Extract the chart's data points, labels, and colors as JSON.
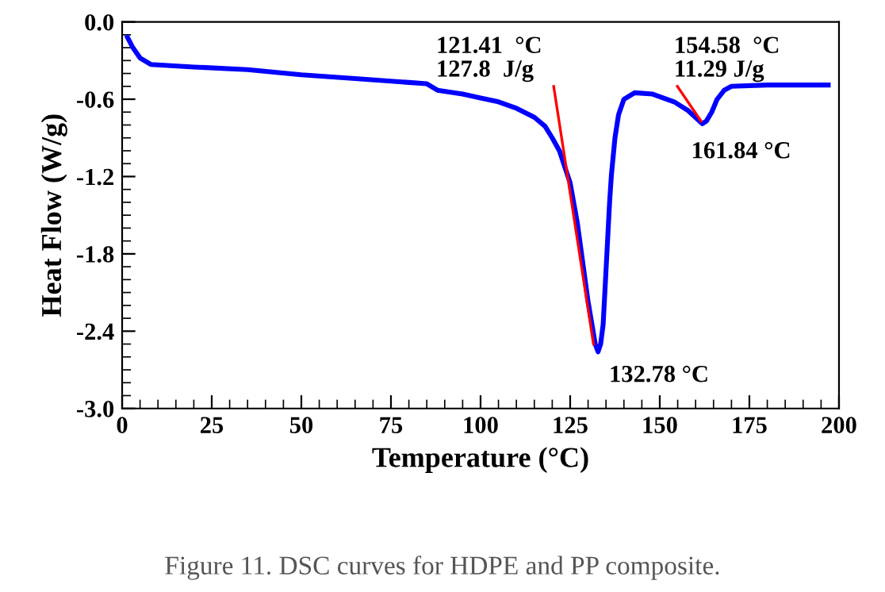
{
  "chart_data": {
    "type": "line",
    "xlabel": "Temperature (°C)",
    "ylabel": "Heat Flow (W/g)",
    "xlim": [
      0,
      200
    ],
    "xticks": [
      0,
      25,
      50,
      75,
      100,
      125,
      150,
      175,
      200
    ],
    "ylim": [
      -3.0,
      0.0
    ],
    "yticks": [
      {
        "value": -3.0,
        "label": "-3.0"
      },
      {
        "value": -2.4,
        "label": "-2.4"
      },
      {
        "value": -1.8,
        "label": "-1.8"
      },
      {
        "value": -1.2,
        "label": "-1.2"
      },
      {
        "value": -0.6,
        "label": "-0.6"
      },
      {
        "value": 0.0,
        "label": "0.0"
      }
    ],
    "grid": false,
    "marker": "none",
    "line_style": "solid",
    "series": [
      {
        "color": "#0000ff",
        "x": [
          1.5,
          3,
          5,
          8,
          20,
          35,
          50,
          65,
          80,
          85,
          88,
          95,
          100,
          105,
          110,
          115,
          118,
          120,
          122,
          125,
          127,
          130,
          132,
          132.78,
          133.5,
          134.2,
          135,
          136,
          136.5,
          137.5,
          138.5,
          140,
          143,
          148,
          154,
          158,
          161.84,
          163,
          164.5,
          166,
          168,
          170,
          180,
          197
        ],
        "values": [
          -0.12,
          -0.2,
          -0.28,
          -0.33,
          -0.35,
          -0.37,
          -0.41,
          -0.44,
          -0.47,
          -0.48,
          -0.53,
          -0.56,
          -0.59,
          -0.62,
          -0.67,
          -0.74,
          -0.81,
          -0.9,
          -1.0,
          -1.25,
          -1.56,
          -2.17,
          -2.5,
          -2.56,
          -2.5,
          -2.35,
          -1.93,
          -1.4,
          -1.19,
          -0.9,
          -0.72,
          -0.6,
          -0.55,
          -0.56,
          -0.62,
          -0.69,
          -0.79,
          -0.77,
          -0.7,
          -0.6,
          -0.53,
          -0.5,
          -0.49,
          -0.49
        ]
      },
      {
        "color": "#ff0000",
        "x": [
          120.4,
          131.5
        ],
        "values": [
          -0.5,
          -2.5
        ]
      },
      {
        "color": "#ff0000",
        "x": [
          154.9,
          161.5
        ],
        "values": [
          -0.5,
          -0.77
        ]
      }
    ],
    "annotations": [
      {
        "text": "121.41  °C\n127.8  J/g",
        "x": 121.41,
        "y": -0.5
      },
      {
        "text": "154.58  °C\n11.29 J/g",
        "x": 154.58,
        "y": -0.5
      },
      {
        "text": "161.84 °C",
        "x": 161.84,
        "y": -0.79
      },
      {
        "text": "132.78 °C",
        "x": 132.78,
        "y": -2.56
      },
      "Figure 11. DSC curves for HDPE and PP composite."
    ]
  }
}
